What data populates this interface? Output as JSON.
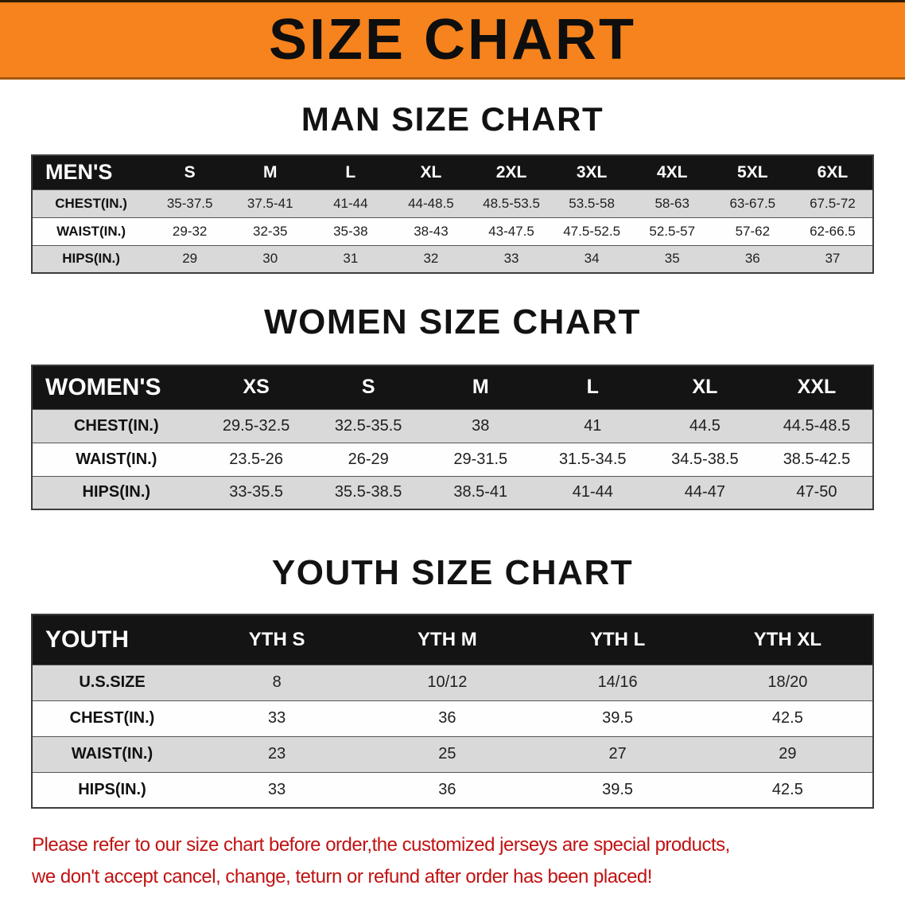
{
  "banner": {
    "title": "SIZE CHART"
  },
  "colors": {
    "banner_orange": "#F6831D",
    "header_black": "#141414",
    "row_gray": "#D9D9D9",
    "disclaimer_red": "#C11212"
  },
  "men": {
    "heading": "MAN SIZE CHART",
    "table": {
      "label": "MEN'S",
      "columns": [
        "S",
        "M",
        "L",
        "XL",
        "2XL",
        "3XL",
        "4XL",
        "5XL",
        "6XL"
      ],
      "rows": [
        {
          "label": "CHEST(IN.)",
          "values": [
            "35-37.5",
            "37.5-41",
            "41-44",
            "44-48.5",
            "48.5-53.5",
            "53.5-58",
            "58-63",
            "63-67.5",
            "67.5-72"
          ]
        },
        {
          "label": "WAIST(IN.)",
          "values": [
            "29-32",
            "32-35",
            "35-38",
            "38-43",
            "43-47.5",
            "47.5-52.5",
            "52.5-57",
            "57-62",
            "62-66.5"
          ]
        },
        {
          "label": "HIPS(IN.)",
          "values": [
            "29",
            "30",
            "31",
            "32",
            "33",
            "34",
            "35",
            "36",
            "37"
          ]
        }
      ]
    }
  },
  "women": {
    "heading": "WOMEN SIZE CHART",
    "table": {
      "label": "WOMEN'S",
      "columns": [
        "XS",
        "S",
        "M",
        "L",
        "XL",
        "XXL"
      ],
      "rows": [
        {
          "label": "CHEST(IN.)",
          "values": [
            "29.5-32.5",
            "32.5-35.5",
            "38",
            "41",
            "44.5",
            "44.5-48.5"
          ]
        },
        {
          "label": "WAIST(IN.)",
          "values": [
            "23.5-26",
            "26-29",
            "29-31.5",
            "31.5-34.5",
            "34.5-38.5",
            "38.5-42.5"
          ]
        },
        {
          "label": "HIPS(IN.)",
          "values": [
            "33-35.5",
            "35.5-38.5",
            "38.5-41",
            "41-44",
            "44-47",
            "47-50"
          ]
        }
      ]
    }
  },
  "youth": {
    "heading": "YOUTH SIZE CHART",
    "table": {
      "label": "YOUTH",
      "columns": [
        "YTH S",
        "YTH M",
        "YTH L",
        "YTH XL"
      ],
      "rows": [
        {
          "label": "U.S.SIZE",
          "values": [
            "8",
            "10/12",
            "14/16",
            "18/20"
          ]
        },
        {
          "label": "CHEST(IN.)",
          "values": [
            "33",
            "36",
            "39.5",
            "42.5"
          ]
        },
        {
          "label": "WAIST(IN.)",
          "values": [
            "23",
            "25",
            "27",
            "29"
          ]
        },
        {
          "label": "HIPS(IN.)",
          "values": [
            "33",
            "36",
            "39.5",
            "42.5"
          ]
        }
      ]
    }
  },
  "footer": {
    "line1": "Please refer to our size chart before order,the customized jerseys are special products,",
    "line2": "we don't accept cancel, change, teturn or refund after order has been placed!"
  }
}
